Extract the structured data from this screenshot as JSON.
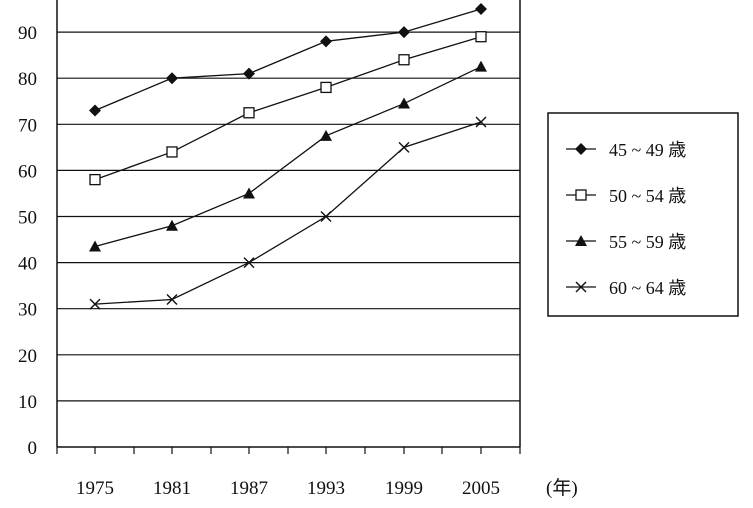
{
  "chart_data": {
    "type": "line",
    "title": "",
    "xlabel": "(年)",
    "ylabel": "",
    "categories": [
      "1975",
      "1981",
      "1987",
      "1993",
      "1999",
      "2005"
    ],
    "y_ticks": [
      "0",
      "10",
      "20",
      "30",
      "40",
      "50",
      "60",
      "70",
      "80",
      "90"
    ],
    "ylim": [
      0,
      100
    ],
    "grid": true,
    "legend_position": "right",
    "series": [
      {
        "name": "45 ~ 49 歳",
        "marker": "filled-diamond",
        "values": [
          73,
          80,
          81,
          88,
          90,
          95
        ]
      },
      {
        "name": "50 ~ 54 歳",
        "marker": "open-square",
        "values": [
          58,
          64,
          72.5,
          78,
          84,
          89
        ]
      },
      {
        "name": "55 ~ 59 歳",
        "marker": "filled-triangle",
        "values": [
          43.5,
          48,
          55,
          67.5,
          74.5,
          82.5
        ]
      },
      {
        "name": "60 ~ 64 歳",
        "marker": "cross",
        "values": [
          31,
          32,
          40,
          50,
          65,
          70.5
        ]
      }
    ],
    "colors": {
      "line": "#111111",
      "grid": "#111111"
    }
  }
}
